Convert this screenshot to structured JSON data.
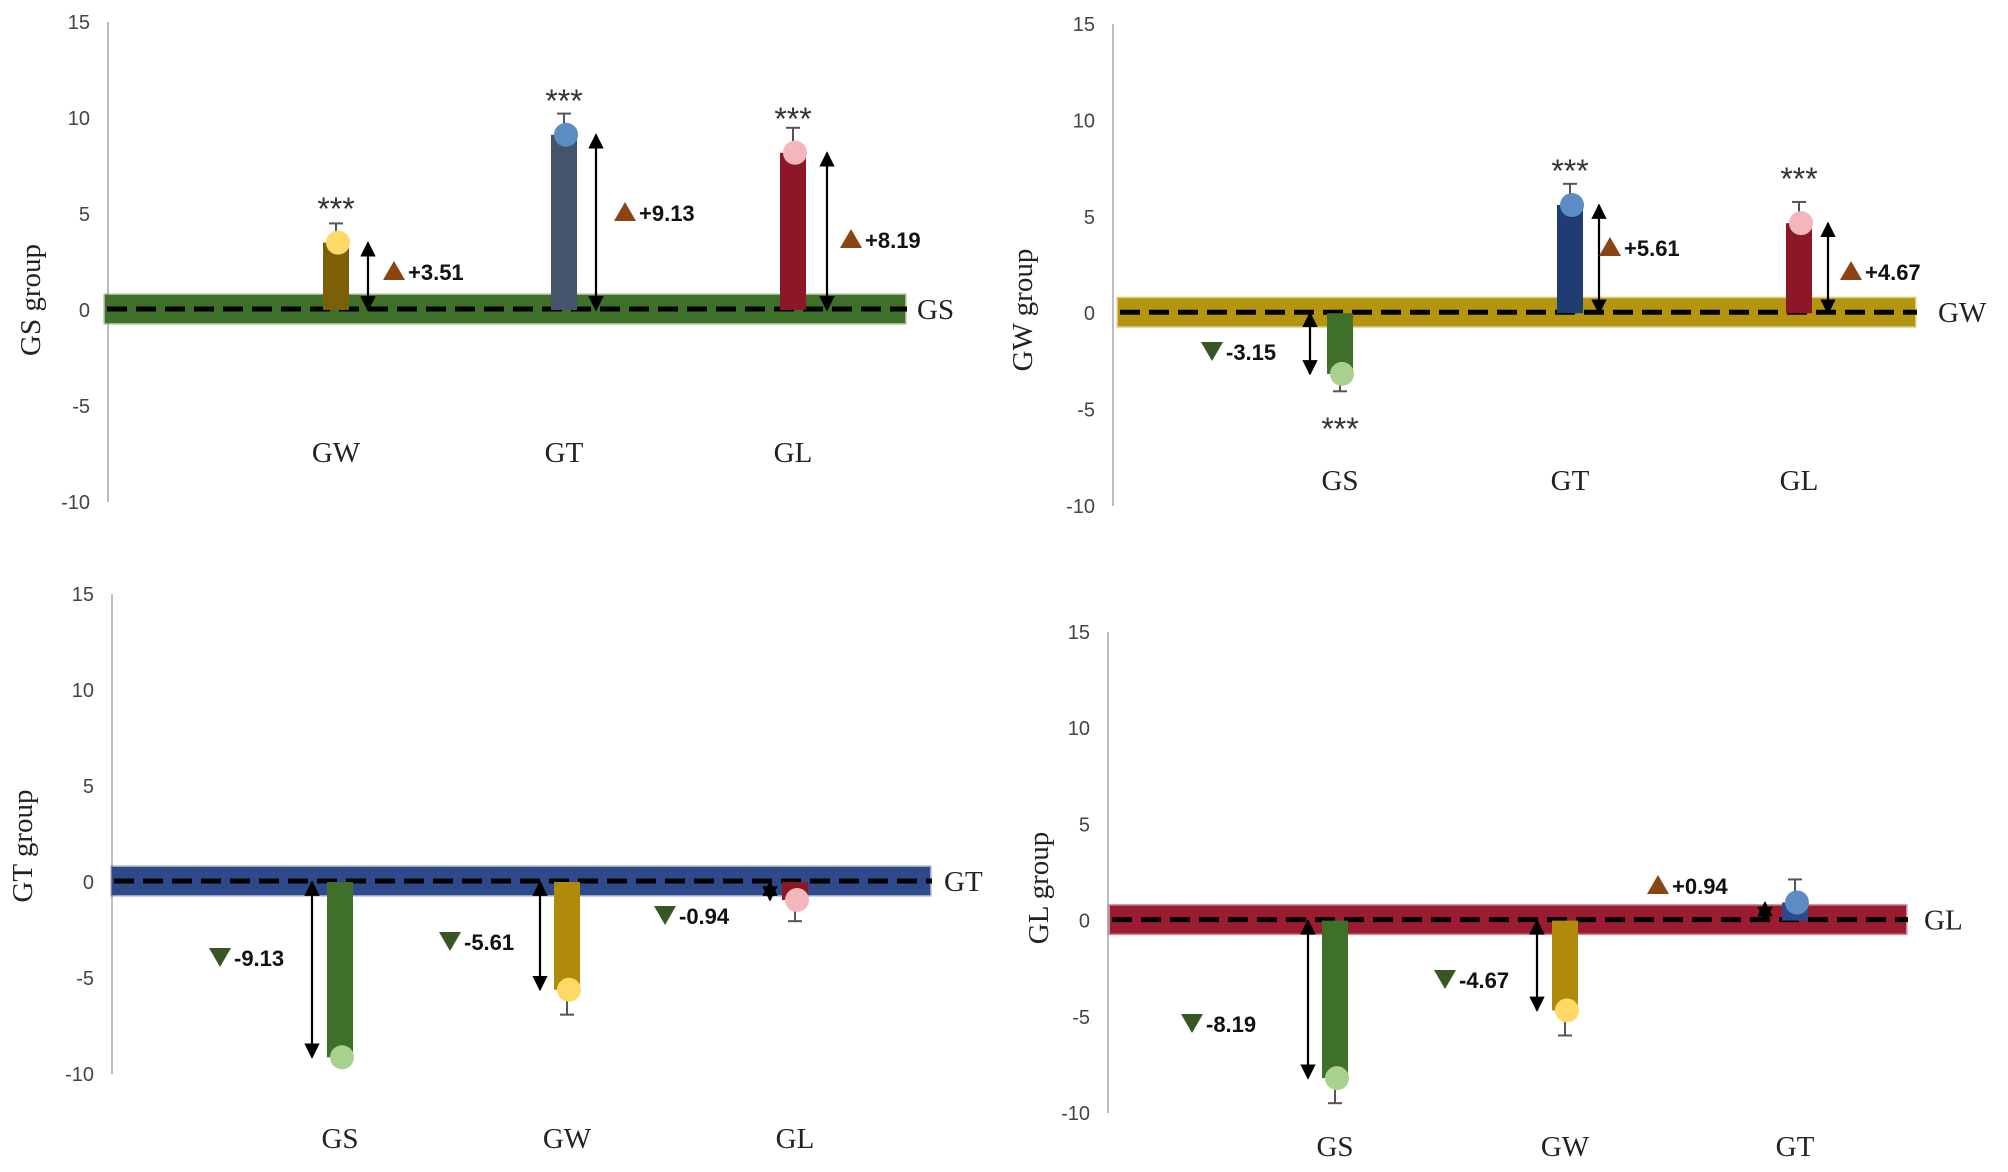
{
  "chart_data": [
    {
      "type": "bar",
      "ylabel": "GS group",
      "reference": "GS",
      "reference_color": "#3F7029",
      "ylim": [
        -10,
        15
      ],
      "yticks": [
        15,
        10,
        5,
        0,
        -5,
        -10
      ],
      "categories": [
        "GW",
        "GT",
        "GL"
      ],
      "values": [
        3.51,
        9.13,
        8.19
      ],
      "errors": [
        1.0,
        1.1,
        1.3
      ],
      "bar_colors": [
        "#7A6108",
        "#44546A",
        "#8B1727"
      ],
      "marker_colors": [
        "#FFD966",
        "#5B8DC4",
        "#F4B6BA"
      ],
      "significance": [
        "***",
        "***",
        "***"
      ],
      "diff_labels": [
        "+3.51",
        "+9.13",
        "+8.19"
      ],
      "diff_direction": [
        "up",
        "up",
        "up"
      ]
    },
    {
      "type": "bar",
      "ylabel": "GW group",
      "reference": "GW",
      "reference_color": "#B59410",
      "ylim": [
        -10,
        15
      ],
      "yticks": [
        15,
        10,
        5,
        0,
        -5,
        -10
      ],
      "categories": [
        "GS",
        "GT",
        "GL"
      ],
      "values": [
        -3.15,
        5.61,
        4.67
      ],
      "errors": [
        0.9,
        1.1,
        1.1
      ],
      "bar_colors": [
        "#3F7029",
        "#1F3D72",
        "#8B1727"
      ],
      "marker_colors": [
        "#A9D18E",
        "#5B8DC4",
        "#F4B6BA"
      ],
      "significance": [
        "***",
        "***",
        "***"
      ],
      "diff_labels": [
        "-3.15",
        "+5.61",
        "+4.67"
      ],
      "diff_direction": [
        "down",
        "up",
        "up"
      ]
    },
    {
      "type": "bar",
      "ylabel": "GT group",
      "reference": "GT",
      "reference_color": "#2E4A8A",
      "ylim": [
        -10,
        15
      ],
      "yticks": [
        15,
        10,
        5,
        0,
        -5,
        -10
      ],
      "categories": [
        "GS",
        "GW",
        "GL"
      ],
      "values": [
        -9.13,
        -5.61,
        -0.94
      ],
      "errors": [
        0.3,
        1.3,
        1.1
      ],
      "bar_colors": [
        "#3F7029",
        "#B08A0A",
        "#8B1727"
      ],
      "marker_colors": [
        "#A9D18E",
        "#FFD966",
        "#F4B6BA"
      ],
      "significance": [
        "",
        "",
        ""
      ],
      "diff_labels": [
        "-9.13",
        "-5.61",
        "-0.94"
      ],
      "diff_direction": [
        "down",
        "down",
        "down"
      ]
    },
    {
      "type": "bar",
      "ylabel": "GL group",
      "reference": "GL",
      "reference_color": "#9B1B30",
      "ylim": [
        -10,
        15
      ],
      "yticks": [
        15,
        10,
        5,
        0,
        -5,
        -10
      ],
      "categories": [
        "GS",
        "GW",
        "GT"
      ],
      "values": [
        -8.19,
        -4.67,
        0.94
      ],
      "errors": [
        1.3,
        1.3,
        1.2
      ],
      "bar_colors": [
        "#3F7029",
        "#B08A0A",
        "#2E4A8A"
      ],
      "marker_colors": [
        "#A9D18E",
        "#FFD966",
        "#5B8DC4"
      ],
      "significance": [
        "",
        "",
        ""
      ],
      "diff_labels": [
        "-8.19",
        "-4.67",
        "+0.94"
      ],
      "diff_direction": [
        "down",
        "down",
        "up"
      ]
    }
  ],
  "colors": {
    "up_triangle": "#8B4513",
    "down_triangle": "#375623",
    "dashed_line": "#000000",
    "axis": "#A6A6A6"
  }
}
